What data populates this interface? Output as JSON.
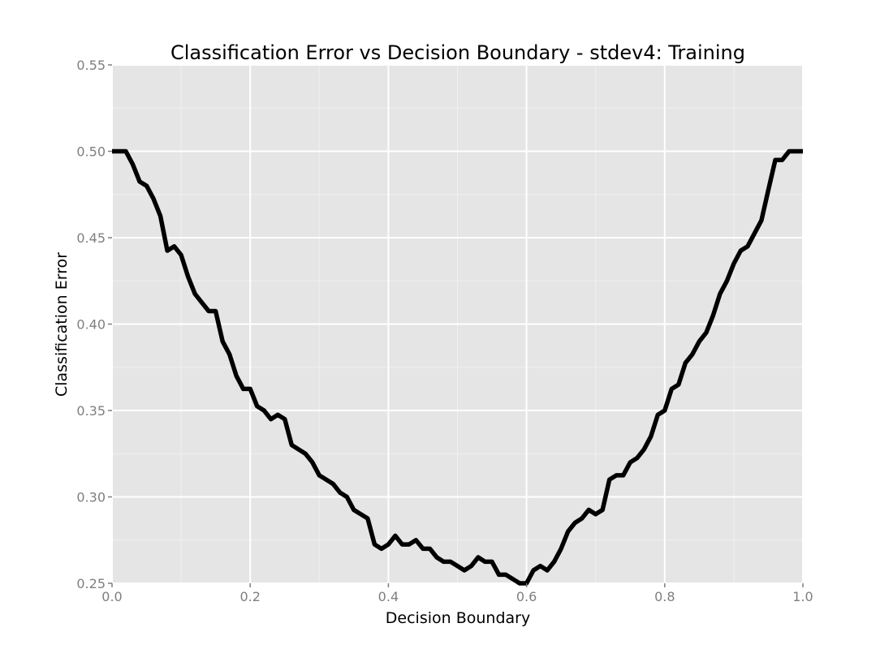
{
  "chart_data": {
    "type": "line",
    "title": "Classification Error vs Decision Boundary - stdev4: Training",
    "xlabel": "Decision Boundary",
    "ylabel": "Classification Error",
    "xlim": [
      0.0,
      1.0
    ],
    "ylim": [
      0.25,
      0.55
    ],
    "x_ticks": [
      "0.0",
      "0.2",
      "0.4",
      "0.6",
      "0.8",
      "1.0"
    ],
    "y_ticks": [
      "0.25",
      "0.30",
      "0.35",
      "0.40",
      "0.45",
      "0.50",
      "0.55"
    ],
    "grid": true,
    "legend": "none",
    "colors": {
      "panel_background": "#e5e5e5",
      "grid": "#ffffff",
      "line": "#000000",
      "tick_text": "#7f7f7f"
    },
    "series": [
      {
        "x": [
          0.0,
          0.01,
          0.02,
          0.03,
          0.04,
          0.05,
          0.06,
          0.07,
          0.08,
          0.09,
          0.1,
          0.11,
          0.12,
          0.13,
          0.14,
          0.15,
          0.16,
          0.17,
          0.18,
          0.19,
          0.2,
          0.21,
          0.22,
          0.23,
          0.24,
          0.25,
          0.26,
          0.27,
          0.28,
          0.29,
          0.3,
          0.31,
          0.32,
          0.33,
          0.34,
          0.35,
          0.36,
          0.37,
          0.38,
          0.39,
          0.4,
          0.41,
          0.42,
          0.43,
          0.44,
          0.45,
          0.46,
          0.47,
          0.48,
          0.49,
          0.5,
          0.51,
          0.52,
          0.53,
          0.54,
          0.55,
          0.56,
          0.57,
          0.58,
          0.59,
          0.6,
          0.61,
          0.62,
          0.63,
          0.64,
          0.65,
          0.66,
          0.67,
          0.68,
          0.69,
          0.7,
          0.71,
          0.72,
          0.73,
          0.74,
          0.75,
          0.76,
          0.77,
          0.78,
          0.79,
          0.8,
          0.81,
          0.82,
          0.83,
          0.84,
          0.85,
          0.86,
          0.87,
          0.88,
          0.89,
          0.9,
          0.91,
          0.92,
          0.93,
          0.94,
          0.95,
          0.96,
          0.97,
          0.98,
          0.99,
          1.0
        ],
        "y": [
          0.5,
          0.5,
          0.5,
          0.4925,
          0.4825,
          0.48,
          0.4725,
          0.4625,
          0.4425,
          0.445,
          0.44,
          0.4275,
          0.4175,
          0.4125,
          0.4075,
          0.4075,
          0.39,
          0.3825,
          0.37,
          0.3625,
          0.3625,
          0.3525,
          0.35,
          0.345,
          0.3475,
          0.345,
          0.33,
          0.3275,
          0.325,
          0.32,
          0.3125,
          0.31,
          0.3075,
          0.3025,
          0.3,
          0.2925,
          0.29,
          0.2875,
          0.2725,
          0.27,
          0.2725,
          0.2775,
          0.2725,
          0.2725,
          0.275,
          0.27,
          0.27,
          0.265,
          0.2625,
          0.2625,
          0.26,
          0.2575,
          0.26,
          0.265,
          0.2625,
          0.2625,
          0.255,
          0.255,
          0.2525,
          0.25,
          0.25,
          0.2575,
          0.26,
          0.2575,
          0.2625,
          0.27,
          0.28,
          0.285,
          0.2875,
          0.2925,
          0.29,
          0.2925,
          0.31,
          0.3125,
          0.3125,
          0.32,
          0.3225,
          0.3275,
          0.335,
          0.3475,
          0.35,
          0.3625,
          0.365,
          0.3775,
          0.3825,
          0.39,
          0.395,
          0.405,
          0.4175,
          0.425,
          0.435,
          0.4425,
          0.445,
          0.4525,
          0.46,
          0.4775,
          0.495,
          0.495,
          0.5,
          0.5,
          0.5
        ]
      }
    ]
  }
}
